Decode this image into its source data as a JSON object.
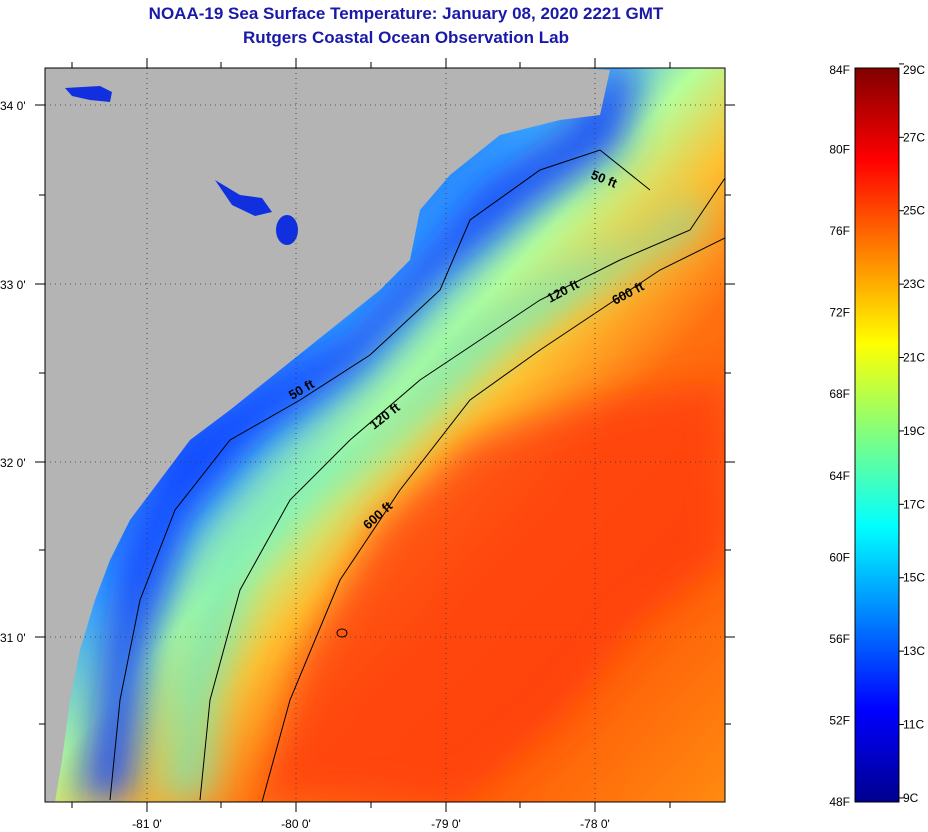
{
  "title": {
    "line1": "NOAA-19 Sea Surface Temperature:  January 08, 2020 2221 GMT",
    "line2": "Rutgers Coastal Ocean Observation Lab"
  },
  "map": {
    "longitude_ticks": [
      {
        "value": -81,
        "label": "-81 0'"
      },
      {
        "value": -80,
        "label": "-80 0'"
      },
      {
        "value": -79,
        "label": "-79 0'"
      },
      {
        "value": -78,
        "label": "-78 0'"
      }
    ],
    "latitude_ticks": [
      {
        "value": 34,
        "label": "34 0'"
      },
      {
        "value": 33,
        "label": "33 0'"
      },
      {
        "value": 32,
        "label": "32 0'"
      },
      {
        "value": 31,
        "label": "31 0'"
      }
    ],
    "lon_range": [
      -81.68,
      -77.12
    ],
    "lat_range": [
      30.2,
      34.2
    ],
    "land_color": "#b4b4b4",
    "isobaths": [
      {
        "label": "50 ft",
        "depth_ft": 50
      },
      {
        "label": "120 ft",
        "depth_ft": 120
      },
      {
        "label": "600 ft",
        "depth_ft": 600
      }
    ],
    "grid": "dotted"
  },
  "colorbar": {
    "fahrenheit_labels": [
      "84F",
      "80F",
      "76F",
      "72F",
      "68F",
      "64F",
      "60F",
      "56F",
      "52F",
      "48F"
    ],
    "celsius_labels": [
      "29C",
      "27C",
      "25C",
      "23C",
      "21C",
      "19C",
      "17C",
      "15C",
      "13C",
      "11C",
      "9C"
    ],
    "range_f": [
      48,
      84
    ],
    "colors": [
      "#00008f",
      "#0000ff",
      "#0080ff",
      "#00ffff",
      "#80ff80",
      "#ffff00",
      "#ff8000",
      "#ff0000",
      "#800000"
    ]
  }
}
